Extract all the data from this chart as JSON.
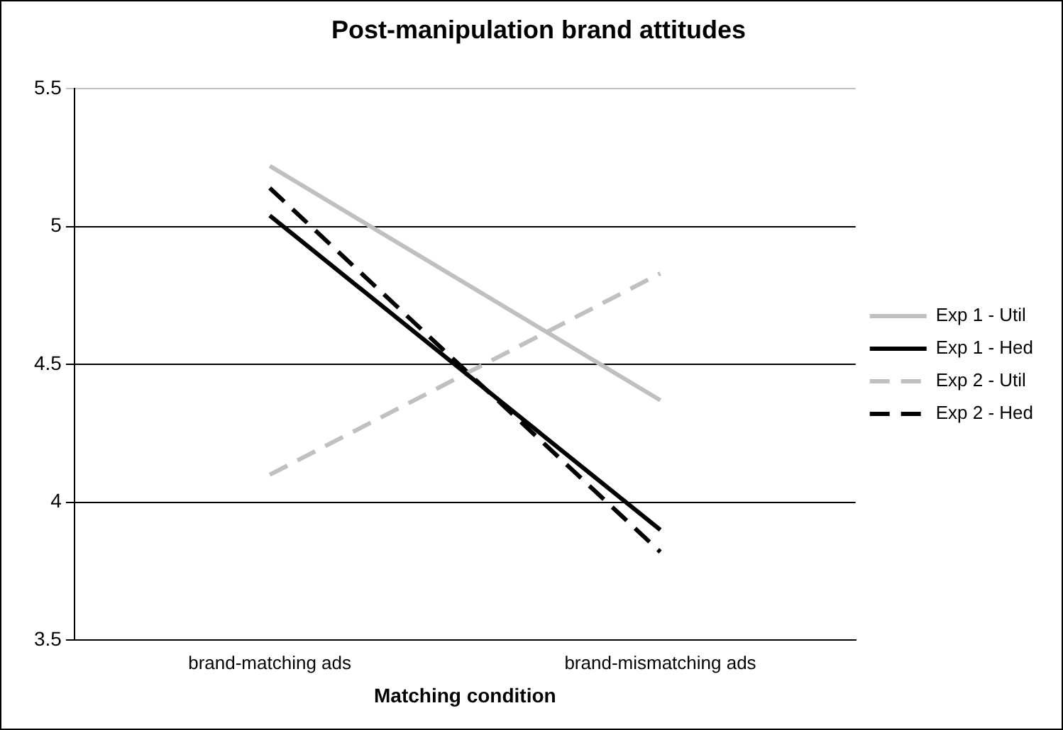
{
  "chart_data": {
    "type": "line",
    "title": "Post-manipulation brand attitudes",
    "xlabel": "Matching condition",
    "categories": [
      "brand-matching ads",
      "brand-mismatching ads"
    ],
    "series": [
      {
        "name": "Exp 1 - Util",
        "color": "#c0c0c0",
        "values": [
          5.22,
          4.37
        ],
        "line_style": "solid"
      },
      {
        "name": "Exp 1 - Hed",
        "color": "#000000",
        "values": [
          5.04,
          3.9
        ],
        "line_style": "solid"
      },
      {
        "name": "Exp 2 - Util",
        "color": "#c0c0c0",
        "values": [
          4.1,
          4.83
        ],
        "line_style": "dashed"
      },
      {
        "name": "Exp 2 - Hed",
        "color": "#000000",
        "values": [
          5.14,
          3.82
        ],
        "line_style": "dashed"
      }
    ],
    "ylim": [
      3.5,
      5.5
    ],
    "yticks": [
      3.5,
      4,
      4.5,
      5,
      5.5
    ],
    "grid": "y",
    "legend": "right",
    "marker": "none"
  }
}
